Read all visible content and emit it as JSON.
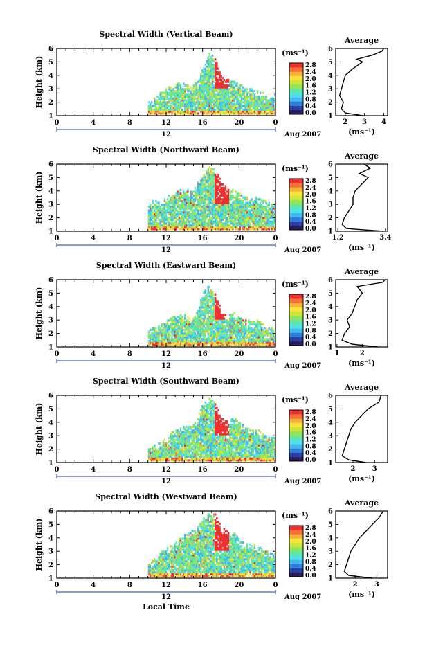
{
  "figure": {
    "xlabel": "Local Time",
    "height_label": "Height (km)",
    "average_title": "Average",
    "colorbar_unit": "(ms⁻¹)",
    "avg_xlabel": "(ms⁻¹)",
    "date_label": "Aug 2007",
    "day_label": "12",
    "colors": {
      "colormap": [
        "#2a1c5a",
        "#2b3fa3",
        "#2f7fd8",
        "#43b7ee",
        "#4fe0e6",
        "#5fe6a6",
        "#8fe45a",
        "#cfe43a",
        "#f6e33a",
        "#f8b03a",
        "#f3703a",
        "#ee3030"
      ],
      "frame": "#000000",
      "date_line": "#1f3a9e"
    }
  },
  "chart_data": [
    {
      "type": "heatmap",
      "title": "Spectral Width (Vertical Beam)",
      "xlabel": "",
      "ylabel": "Height (km)",
      "xlim": [
        0,
        24
      ],
      "ylim": [
        1,
        6
      ],
      "xticks": [
        "0",
        "4",
        "8",
        "12",
        "16",
        "20",
        "0"
      ],
      "yticks": [
        "1",
        "2",
        "3",
        "4",
        "5",
        "6"
      ],
      "colorbar": {
        "ticks": [
          "0.0",
          "0.4",
          "0.8",
          "1.2",
          "1.6",
          "2.0",
          "2.4",
          "2.8"
        ],
        "range": [
          0.0,
          2.8
        ]
      },
      "data_extent": {
        "start_hour": 10,
        "end_hour": 24,
        "max_height": [
          2.0,
          2.3,
          2.8,
          3.0,
          3.2,
          3.4,
          3.3,
          3.1,
          3.5,
          4.5,
          5.6,
          5.4,
          3.8,
          3.6,
          3.6,
          3.3,
          3.0,
          2.9,
          2.8,
          2.6,
          2.5,
          2.5
        ]
      },
      "average": {
        "xlim": [
          1.5,
          4.2
        ],
        "xticks": [
          "2",
          "3",
          "4"
        ],
        "yticks": [
          "1",
          "2",
          "3",
          "4",
          "5",
          "6"
        ],
        "height": [
          1.0,
          1.2,
          1.5,
          2.0,
          2.5,
          3.0,
          3.5,
          4.0,
          4.5,
          5.0,
          5.2,
          5.5,
          5.8,
          6.0
        ],
        "value": [
          2.9,
          2.0,
          1.8,
          1.9,
          1.7,
          1.8,
          1.9,
          2.0,
          2.4,
          2.9,
          2.6,
          3.4,
          3.9,
          4.0
        ]
      }
    },
    {
      "type": "heatmap",
      "title": "Spectral Width (Northward Beam)",
      "xlabel": "",
      "ylabel": "Height (km)",
      "xlim": [
        0,
        24
      ],
      "ylim": [
        1,
        6
      ],
      "xticks": [
        "0",
        "4",
        "8",
        "12",
        "16",
        "20",
        "0"
      ],
      "yticks": [
        "1",
        "2",
        "3",
        "4",
        "5",
        "6"
      ],
      "colorbar": {
        "ticks": [
          "0.0",
          "0.4",
          "0.8",
          "1.2",
          "1.6",
          "2.0",
          "2.4",
          "2.8"
        ],
        "range": [
          0.0,
          2.8
        ]
      },
      "data_extent": {
        "start_hour": 10,
        "end_hour": 24,
        "max_height": [
          3.0,
          3.3,
          3.1,
          3.5,
          3.8,
          4.0,
          4.2,
          3.9,
          4.5,
          5.2,
          5.8,
          5.6,
          4.6,
          4.2,
          4.0,
          3.8,
          3.5,
          3.4,
          3.6,
          3.3,
          3.1,
          3.2
        ]
      },
      "average": {
        "xlim": [
          1.1,
          3.5
        ],
        "xticks": [
          "1.2",
          "3.4"
        ],
        "yticks": [
          "1",
          "2",
          "3",
          "4",
          "5",
          "6"
        ],
        "height": [
          1.0,
          1.2,
          1.5,
          2.0,
          2.5,
          3.0,
          3.5,
          4.0,
          4.5,
          5.0,
          5.3,
          5.7,
          6.0
        ],
        "value": [
          3.3,
          1.6,
          1.4,
          1.5,
          1.7,
          1.9,
          1.9,
          2.0,
          2.3,
          2.6,
          2.2,
          2.7,
          2.4
        ]
      }
    },
    {
      "type": "heatmap",
      "title": "Spectral Width (Eastward Beam)",
      "xlabel": "",
      "ylabel": "Height (km)",
      "xlim": [
        0,
        24
      ],
      "ylim": [
        1,
        6
      ],
      "xticks": [
        "0",
        "4",
        "8",
        "12",
        "16",
        "20",
        "0"
      ],
      "yticks": [
        "1",
        "2",
        "3",
        "4",
        "5",
        "6"
      ],
      "colorbar": {
        "ticks": [
          "0.0",
          "0.4",
          "0.8",
          "1.2",
          "1.6",
          "2.0",
          "2.4",
          "2.8"
        ],
        "range": [
          0.0,
          2.8
        ]
      },
      "data_extent": {
        "start_hour": 10,
        "end_hour": 24,
        "max_height": [
          2.2,
          2.5,
          2.7,
          2.9,
          3.2,
          3.3,
          3.4,
          3.0,
          3.6,
          5.2,
          5.5,
          5.0,
          3.6,
          3.2,
          3.6,
          3.1,
          3.0,
          2.8,
          3.0,
          2.6,
          2.4,
          2.3
        ]
      },
      "average": {
        "xlim": [
          0.95,
          3.0
        ],
        "xticks": [
          "1",
          "2"
        ],
        "yticks": [
          "1",
          "2",
          "3",
          "4",
          "5",
          "6"
        ],
        "height": [
          1.0,
          1.2,
          1.5,
          2.0,
          2.5,
          3.0,
          3.5,
          4.0,
          4.5,
          5.0,
          5.5,
          5.8,
          6.0
        ],
        "value": [
          2.6,
          1.6,
          1.2,
          1.3,
          1.5,
          1.4,
          1.6,
          1.7,
          1.8,
          2.0,
          1.8,
          2.8,
          2.9
        ]
      }
    },
    {
      "type": "heatmap",
      "title": "Spectral Width (Southward Beam)",
      "xlabel": "",
      "ylabel": "Height (km)",
      "xlim": [
        0,
        24
      ],
      "ylim": [
        1,
        6
      ],
      "xticks": [
        "0",
        "4",
        "8",
        "12",
        "16",
        "20",
        "0"
      ],
      "yticks": [
        "1",
        "2",
        "3",
        "4",
        "5",
        "6"
      ],
      "colorbar": {
        "ticks": [
          "0.0",
          "0.4",
          "0.8",
          "1.2",
          "1.6",
          "2.0",
          "2.4",
          "2.8"
        ],
        "range": [
          0.0,
          2.8
        ]
      },
      "data_extent": {
        "start_hour": 10,
        "end_hour": 24,
        "max_height": [
          2.0,
          2.3,
          2.5,
          2.8,
          3.3,
          3.5,
          3.7,
          3.6,
          4.2,
          5.4,
          5.7,
          5.5,
          4.2,
          4.0,
          4.3,
          3.9,
          3.6,
          3.5,
          3.4,
          3.0,
          2.8,
          2.8
        ]
      },
      "average": {
        "xlim": [
          1.2,
          3.6
        ],
        "xticks": [
          "2",
          "3"
        ],
        "yticks": [
          "1",
          "2",
          "3",
          "4",
          "5",
          "6"
        ],
        "height": [
          1.0,
          1.2,
          1.5,
          2.0,
          2.5,
          3.0,
          3.5,
          4.0,
          4.5,
          5.0,
          5.5,
          6.0
        ],
        "value": [
          2.6,
          1.8,
          1.5,
          1.6,
          1.7,
          1.8,
          1.9,
          2.1,
          2.4,
          2.7,
          3.2,
          3.3
        ]
      }
    },
    {
      "type": "heatmap",
      "title": "Spectral Width (Westward Beam)",
      "xlabel": "Local Time",
      "ylabel": "Height (km)",
      "xlim": [
        0,
        24
      ],
      "ylim": [
        1,
        6
      ],
      "xticks": [
        "0",
        "4",
        "8",
        "12",
        "16",
        "20",
        "0"
      ],
      "yticks": [
        "1",
        "2",
        "3",
        "4",
        "5",
        "6"
      ],
      "colorbar": {
        "ticks": [
          "0.0",
          "0.4",
          "0.8",
          "1.2",
          "1.6",
          "2.0",
          "2.4",
          "2.8"
        ],
        "range": [
          0.0,
          2.8
        ]
      },
      "data_extent": {
        "start_hour": 10,
        "end_hour": 24,
        "max_height": [
          2.0,
          2.4,
          2.9,
          3.2,
          3.5,
          3.9,
          4.2,
          4.4,
          4.8,
          5.6,
          5.8,
          5.7,
          4.7,
          4.5,
          4.4,
          3.8,
          3.5,
          3.6,
          3.3,
          3.0,
          2.9,
          2.8
        ]
      },
      "average": {
        "xlim": [
          1.1,
          3.5
        ],
        "xticks": [
          "2",
          "3"
        ],
        "yticks": [
          "1",
          "2",
          "3",
          "4",
          "5",
          "6"
        ],
        "height": [
          1.0,
          1.2,
          1.5,
          2.0,
          2.5,
          3.0,
          3.5,
          4.0,
          4.5,
          5.0,
          5.5,
          6.0
        ],
        "value": [
          2.8,
          1.7,
          1.5,
          1.6,
          1.7,
          1.8,
          2.0,
          2.2,
          2.5,
          2.8,
          3.1,
          3.3
        ]
      }
    }
  ]
}
